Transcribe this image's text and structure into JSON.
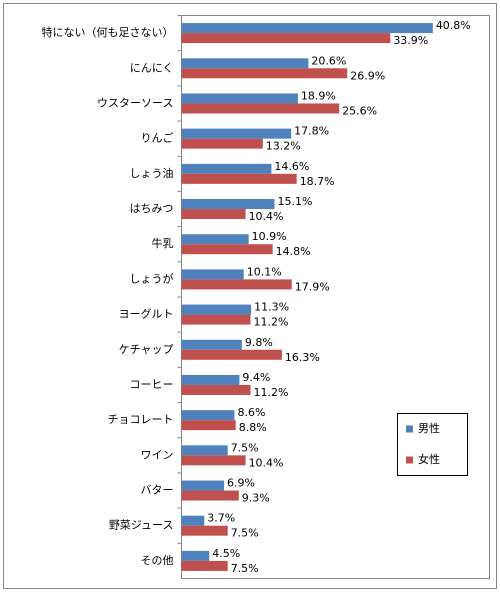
{
  "chart_data": {
    "type": "bar",
    "orientation": "horizontal",
    "categories": [
      "特にない（何も足さない）",
      "にんにく",
      "ウスターソース",
      "りんご",
      "しょう油",
      "はちみつ",
      "牛乳",
      "しょうが",
      "ヨーグルト",
      "ケチャップ",
      "コーヒー",
      "チョコレート",
      "ワイン",
      "バター",
      "野菜ジュース",
      "その他"
    ],
    "series": [
      {
        "name": "男性",
        "color": "#4f81bd",
        "values": [
          40.8,
          20.6,
          18.9,
          17.8,
          14.6,
          15.1,
          10.9,
          10.1,
          11.3,
          9.8,
          9.4,
          8.6,
          7.5,
          6.9,
          3.7,
          4.5
        ],
        "value_labels": [
          "40.8%",
          "20.6%",
          "18.9%",
          "17.8%",
          "14.6%",
          "15.1%",
          "10.9%",
          "10.1%",
          "11.3%",
          "9.8%",
          "9.4%",
          "8.6%",
          "7.5%",
          "6.9%",
          "3.7%",
          "4.5%"
        ]
      },
      {
        "name": "女性",
        "color": "#c0504d",
        "values": [
          33.9,
          26.9,
          25.6,
          13.2,
          18.7,
          10.4,
          14.8,
          17.9,
          11.2,
          16.3,
          11.2,
          8.8,
          10.4,
          9.3,
          7.5,
          7.5
        ],
        "value_labels": [
          "33.9%",
          "26.9%",
          "25.6%",
          "13.2%",
          "18.7%",
          "10.4%",
          "14.8%",
          "17.9%",
          "11.2%",
          "16.3%",
          "11.2%",
          "8.8%",
          "10.4%",
          "9.3%",
          "7.5%",
          "7.5%"
        ]
      }
    ],
    "xlim": [
      0,
      50
    ],
    "legend": "lower-right"
  }
}
